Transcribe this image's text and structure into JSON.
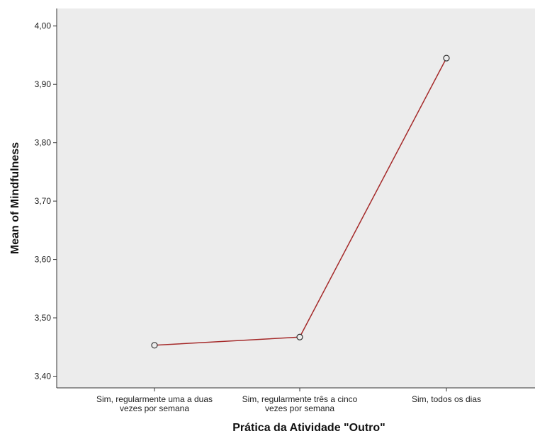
{
  "chart_data": {
    "type": "line",
    "title": "",
    "xlabel": "Prática da Atividade \"Outro\"",
    "ylabel": "Mean of Mindfulness",
    "categories": [
      [
        "Sim, regularmente uma a duas",
        "vezes por semana"
      ],
      [
        "Sim, regularmente três a cinco",
        "vezes por semana"
      ],
      [
        "Sim, todos os dias"
      ]
    ],
    "series": [
      {
        "values": [
          3.453,
          3.467,
          3.945
        ]
      }
    ],
    "ylim": [
      3.38,
      4.03
    ],
    "yticks": [
      {
        "value": 3.4,
        "label": "3,40"
      },
      {
        "value": 3.5,
        "label": "3,50"
      },
      {
        "value": 3.6,
        "label": "3,60"
      },
      {
        "value": 3.7,
        "label": "3,70"
      },
      {
        "value": 3.8,
        "label": "3,80"
      },
      {
        "value": 3.9,
        "label": "3,90"
      },
      {
        "value": 4.0,
        "label": "4,00"
      }
    ],
    "grid": false,
    "legend": "none",
    "colors": {
      "line": "#a52a2a",
      "plot_background": "#ececec",
      "axis": "#333333",
      "marker_fill": "#ececec",
      "marker_stroke": "#333333"
    }
  }
}
